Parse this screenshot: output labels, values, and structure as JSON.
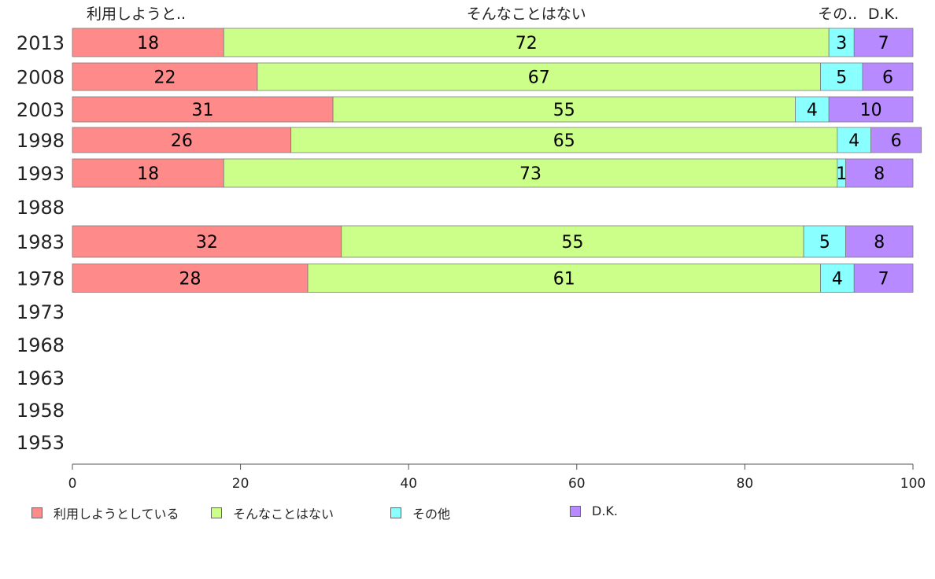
{
  "chart_data": {
    "type": "bar",
    "orientation": "horizontal",
    "stacked": true,
    "categories": [
      "2013",
      "2008",
      "2003",
      "1998",
      "1993",
      "1988",
      "1983",
      "1978",
      "1973",
      "1968",
      "1963",
      "1958",
      "1953"
    ],
    "series": [
      {
        "name": "利用しようとしている",
        "short_label": "利用しようと..",
        "color": "#ff8a8a",
        "values": [
          18,
          22,
          31,
          26,
          18,
          null,
          32,
          28,
          null,
          null,
          null,
          null,
          null
        ]
      },
      {
        "name": "そんなことはない",
        "short_label": "そんなことはない",
        "color": "#ccff8a",
        "values": [
          72,
          67,
          55,
          65,
          73,
          null,
          55,
          61,
          null,
          null,
          null,
          null,
          null
        ]
      },
      {
        "name": "その他",
        "short_label": "その..",
        "color": "#8affff",
        "values": [
          3,
          5,
          4,
          4,
          1,
          null,
          5,
          4,
          null,
          null,
          null,
          null,
          null
        ]
      },
      {
        "name": "D.K.",
        "short_label": "D.K.",
        "color": "#b88aff",
        "values": [
          7,
          6,
          10,
          6,
          8,
          null,
          8,
          7,
          null,
          null,
          null,
          null,
          null
        ]
      }
    ],
    "xlim": [
      0,
      100
    ],
    "xticks": [
      "0",
      "20",
      "40",
      "60",
      "80",
      "100"
    ],
    "grid": false,
    "legend": "bottom"
  }
}
